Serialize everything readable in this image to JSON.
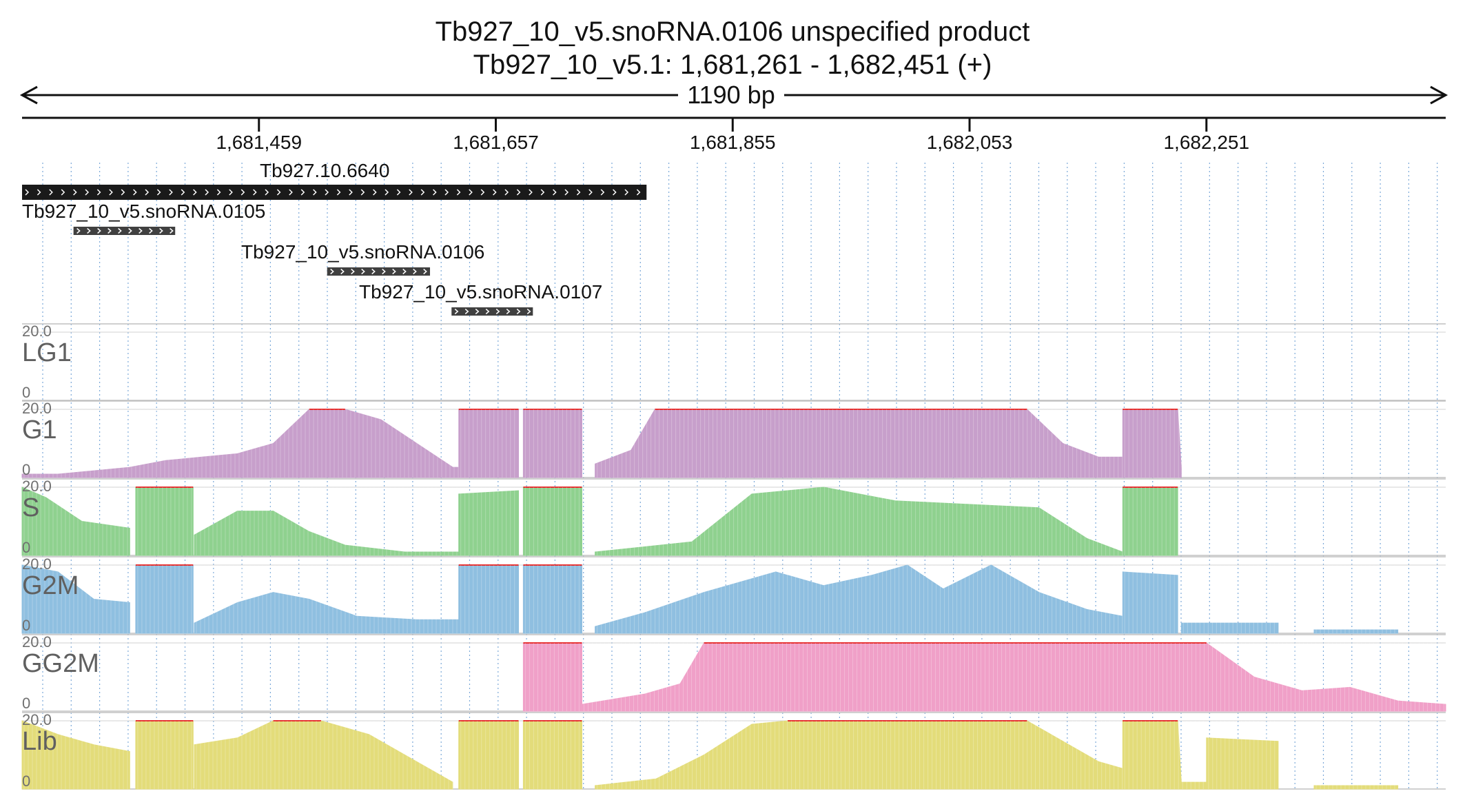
{
  "header": {
    "title": "Tb927_10_v5.snoRNA.0106  unspecified product",
    "location": "Tb927_10_v5.1: 1,681,261 - 1,682,451 (+)",
    "span": "1190 bp"
  },
  "ruler": {
    "start": 1681261,
    "end": 1682451,
    "ticks": [
      {
        "pos": 1681459,
        "label": "1,681,459"
      },
      {
        "pos": 1681657,
        "label": "1,681,657"
      },
      {
        "pos": 1681855,
        "label": "1,681,855"
      },
      {
        "pos": 1682053,
        "label": "1,682,053"
      },
      {
        "pos": 1682251,
        "label": "1,682,251"
      }
    ]
  },
  "features": [
    {
      "id": "Tb927.10.6640",
      "label": "Tb927.10.6640",
      "start": 1681261,
      "end": 1681783,
      "strand": "+",
      "style": "gene"
    },
    {
      "id": "Tb927_10_v5.snoRNA.0105",
      "label": "Tb927_10_v5.snoRNA.0105",
      "start": 1681304,
      "end": 1681389,
      "strand": "+",
      "style": "sno"
    },
    {
      "id": "Tb927_10_v5.snoRNA.0106",
      "label": "Tb927_10_v5.snoRNA.0106",
      "start": 1681516,
      "end": 1681602,
      "strand": "+",
      "style": "sno"
    },
    {
      "id": "Tb927_10_v5.snoRNA.0107",
      "label": "Tb927_10_v5.snoRNA.0107",
      "start": 1681620,
      "end": 1681688,
      "strand": "+",
      "style": "sno"
    }
  ],
  "chart_data": {
    "type": "area",
    "x_unit": "bp",
    "x_range": [
      1681261,
      1682451
    ],
    "ymax_label": "20.0",
    "ymin_label": "0",
    "ylim": [
      0,
      20
    ],
    "series": [
      {
        "name": "LG1",
        "color": "#b0b0b0",
        "segments": []
      },
      {
        "name": "G1",
        "color": "#c79fcb",
        "segments": [
          [
            1681261,
            1,
            1681291,
            1,
            1681321,
            2,
            1681351,
            3,
            1681381,
            5,
            1681411,
            6,
            1681441,
            7,
            1681471,
            10,
            1681501,
            20,
            1681531,
            20,
            1681561,
            17,
            1681591,
            10,
            1681621,
            3,
            1681626,
            3
          ],
          [
            1681626,
            20,
            1681676,
            20
          ],
          [
            1681680,
            20,
            1681729,
            20
          ],
          [
            1681740,
            4,
            1681770,
            8,
            1681790,
            20,
            1682101,
            20,
            1682131,
            10,
            1682161,
            6,
            1682181,
            6
          ],
          [
            1682181,
            20,
            1682227,
            20,
            1682230,
            3
          ]
        ]
      },
      {
        "name": "S",
        "color": "#8fd18f",
        "segments": [
          [
            1681261,
            20,
            1681281,
            17,
            1681311,
            10,
            1681351,
            8
          ],
          [
            1681356,
            20,
            1681404,
            20
          ],
          [
            1681405,
            6,
            1681441,
            13,
            1681471,
            13,
            1681501,
            7,
            1681531,
            3,
            1681581,
            1,
            1681626,
            1
          ],
          [
            1681626,
            18,
            1681676,
            19
          ],
          [
            1681680,
            20,
            1681729,
            20
          ],
          [
            1681740,
            1,
            1681821,
            4,
            1681871,
            18,
            1681931,
            20,
            1681991,
            16,
            1682051,
            15,
            1682111,
            14,
            1682151,
            5,
            1682181,
            1
          ],
          [
            1682181,
            20,
            1682227,
            20
          ]
        ]
      },
      {
        "name": "G2M",
        "color": "#8fbfe0",
        "segments": [
          [
            1681261,
            20,
            1681291,
            18,
            1681321,
            10,
            1681351,
            9
          ],
          [
            1681356,
            20,
            1681404,
            20
          ],
          [
            1681405,
            3,
            1681441,
            9,
            1681471,
            12,
            1681501,
            10,
            1681541,
            5,
            1681591,
            4,
            1681626,
            4
          ],
          [
            1681626,
            20,
            1681676,
            20
          ],
          [
            1681680,
            20,
            1681729,
            20
          ],
          [
            1681740,
            2,
            1681781,
            6,
            1681831,
            12,
            1681891,
            18,
            1681931,
            14,
            1681971,
            17,
            1682001,
            20,
            1682031,
            13,
            1682071,
            20,
            1682111,
            12,
            1682151,
            7,
            1682181,
            5
          ],
          [
            1682181,
            18,
            1682227,
            17
          ],
          [
            1682230,
            3,
            1682311,
            3
          ],
          [
            1682341,
            1,
            1682411,
            1
          ]
        ]
      },
      {
        "name": "GG2M",
        "color": "#f0a0c8",
        "segments": [
          [
            1681680,
            20,
            1681729,
            20
          ],
          [
            1681729,
            2,
            1681781,
            5,
            1681811,
            8,
            1681831,
            20,
            1682251,
            20,
            1682291,
            10,
            1682331,
            6,
            1682371,
            7,
            1682411,
            3,
            1682451,
            2
          ]
        ]
      },
      {
        "name": "Lib",
        "color": "#e3dc7a",
        "segments": [
          [
            1681261,
            20,
            1681291,
            16,
            1681321,
            13,
            1681351,
            11
          ],
          [
            1681356,
            20,
            1681404,
            20
          ],
          [
            1681405,
            13,
            1681441,
            15,
            1681471,
            20,
            1681511,
            20,
            1681551,
            16,
            1681591,
            8,
            1681621,
            2
          ],
          [
            1681626,
            20,
            1681676,
            20
          ],
          [
            1681680,
            20,
            1681729,
            20
          ],
          [
            1681740,
            1,
            1681791,
            3,
            1681831,
            10,
            1681871,
            19,
            1681901,
            20,
            1681951,
            20,
            1682001,
            20,
            1682051,
            20,
            1682101,
            20,
            1682131,
            14,
            1682161,
            8,
            1682181,
            6
          ],
          [
            1682181,
            20,
            1682227,
            20,
            1682230,
            2,
            1682251,
            2
          ],
          [
            1682251,
            15,
            1682311,
            14
          ],
          [
            1682341,
            1,
            1682411,
            1
          ]
        ]
      }
    ]
  }
}
